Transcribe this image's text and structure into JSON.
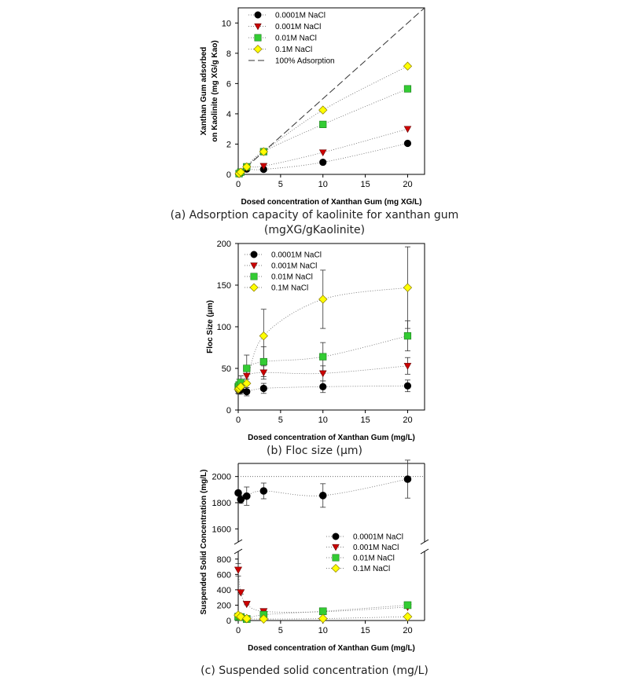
{
  "colors": {
    "s0": "#000000",
    "s1": "#cc0000",
    "s2": "#33cc33",
    "s3": "#ffff00"
  },
  "chart_data": [
    {
      "type": "scatter",
      "caption": "(a) Adsorption capacity of kaolinite for xanthan gum",
      "caption2": "(mgXG/gKaolinite)",
      "xlabel": "Dosed concentration of Xanthan Gum (mg XG/L)",
      "ylabel": [
        "Xanthan Gum adsorbed",
        "on Kaolinite (mg XG/g Kao)"
      ],
      "xlim": [
        0,
        22
      ],
      "ylim": [
        0,
        11
      ],
      "xticks": [
        0,
        5,
        10,
        15,
        20
      ],
      "yticks": [
        0,
        2,
        4,
        6,
        8,
        10
      ],
      "legend_position": "top-left",
      "series": [
        {
          "name": "0.0001M NaCl",
          "marker": "circle",
          "x": [
            0.1,
            0.3,
            1,
            3,
            10,
            20
          ],
          "y": [
            0.05,
            0.1,
            0.35,
            0.33,
            0.8,
            2.05
          ]
        },
        {
          "name": "0.001M NaCl",
          "marker": "triangle-down",
          "x": [
            0.1,
            0.3,
            1,
            3,
            10,
            20
          ],
          "y": [
            0.05,
            0.15,
            0.5,
            0.55,
            1.45,
            3.0
          ]
        },
        {
          "name": "0.01M NaCl",
          "marker": "square",
          "x": [
            0.1,
            0.3,
            1,
            3,
            10,
            20
          ],
          "y": [
            0.05,
            0.15,
            0.5,
            1.5,
            3.3,
            5.65
          ]
        },
        {
          "name": "0.1M NaCl",
          "marker": "diamond",
          "x": [
            0.1,
            0.3,
            1,
            3,
            10,
            20
          ],
          "y": [
            0.05,
            0.15,
            0.5,
            1.5,
            4.25,
            7.15
          ]
        }
      ],
      "reference_line": {
        "name": "100% Adsorption",
        "x": [
          0,
          22
        ],
        "y": [
          0,
          11
        ]
      }
    },
    {
      "type": "scatter",
      "caption": "(b) Floc size (μm)",
      "xlabel": "Dosed concentration of Xanthan Gum (mg/L)",
      "ylabel": [
        "Floc Size (μm)"
      ],
      "xlim": [
        0,
        22
      ],
      "ylim": [
        0,
        200
      ],
      "xticks": [
        0,
        5,
        10,
        15,
        20
      ],
      "yticks": [
        0,
        50,
        100,
        150,
        200
      ],
      "legend_position": "top-left",
      "series": [
        {
          "name": "0.0001M NaCl",
          "marker": "circle",
          "x": [
            0,
            0.1,
            0.3,
            1,
            3,
            10,
            20
          ],
          "y": [
            25,
            24,
            24,
            22,
            26,
            28,
            29
          ],
          "err": [
            5,
            5,
            5,
            5,
            6,
            7,
            7
          ]
        },
        {
          "name": "0.001M NaCl",
          "marker": "triangle-down",
          "x": [
            0,
            0.1,
            0.3,
            1,
            3,
            10,
            20
          ],
          "y": [
            26,
            27,
            30,
            41,
            45,
            44,
            53
          ],
          "err": [
            6,
            6,
            6,
            7,
            8,
            9,
            10
          ]
        },
        {
          "name": "0.01M NaCl",
          "marker": "square",
          "x": [
            0,
            0.1,
            0.3,
            1,
            3,
            10,
            20
          ],
          "y": [
            28,
            30,
            33,
            50,
            58,
            64,
            89
          ],
          "err": [
            6,
            7,
            8,
            16,
            18,
            17,
            18
          ]
        },
        {
          "name": "0.1M NaCl",
          "marker": "diamond",
          "x": [
            0,
            0.1,
            0.3,
            1,
            3,
            10,
            20
          ],
          "y": [
            25,
            26,
            28,
            32,
            89,
            133,
            147
          ],
          "err": [
            5,
            5,
            5,
            5,
            32,
            35,
            49
          ]
        }
      ]
    },
    {
      "type": "scatter",
      "caption": "(c) Suspended solid concentration (mg/L)",
      "xlabel": "Dosed concentration of Xanthan Gum (mg/L)",
      "ylabel": [
        "Suspended Solid Concentration (mg/L)"
      ],
      "xlim": [
        0,
        22
      ],
      "broken_axis": {
        "lower": [
          0,
          900
        ],
        "upper": [
          1500,
          2100
        ]
      },
      "xticks": [
        0,
        5,
        10,
        15,
        20
      ],
      "yticks_lower": [
        0,
        200,
        400,
        600,
        800
      ],
      "yticks_upper": [
        1600,
        1800,
        2000
      ],
      "reference_y": 2000,
      "legend_position": "right",
      "series": [
        {
          "name": "0.0001M NaCl",
          "marker": "circle",
          "x": [
            0,
            0.3,
            1,
            3,
            10,
            20
          ],
          "y": [
            1875,
            1825,
            1850,
            1890,
            1855,
            1980
          ],
          "err": [
            0,
            30,
            70,
            60,
            90,
            145
          ]
        },
        {
          "name": "0.001M NaCl",
          "marker": "triangle-down",
          "x": [
            0,
            0.3,
            1,
            3,
            10,
            20
          ],
          "y": [
            660,
            365,
            215,
            120,
            115,
            175
          ],
          "err": [
            80,
            20,
            10,
            10,
            10,
            10
          ]
        },
        {
          "name": "0.01M NaCl",
          "marker": "square",
          "x": [
            0,
            0.3,
            1,
            3,
            10,
            20
          ],
          "y": [
            50,
            45,
            20,
            75,
            120,
            200
          ],
          "err": [
            0,
            0,
            0,
            0,
            0,
            0
          ]
        },
        {
          "name": "0.1M NaCl",
          "marker": "diamond",
          "x": [
            0,
            0.3,
            1,
            3,
            10,
            20
          ],
          "y": [
            70,
            50,
            25,
            20,
            25,
            50
          ],
          "err": [
            0,
            0,
            0,
            0,
            0,
            0
          ]
        }
      ]
    }
  ]
}
